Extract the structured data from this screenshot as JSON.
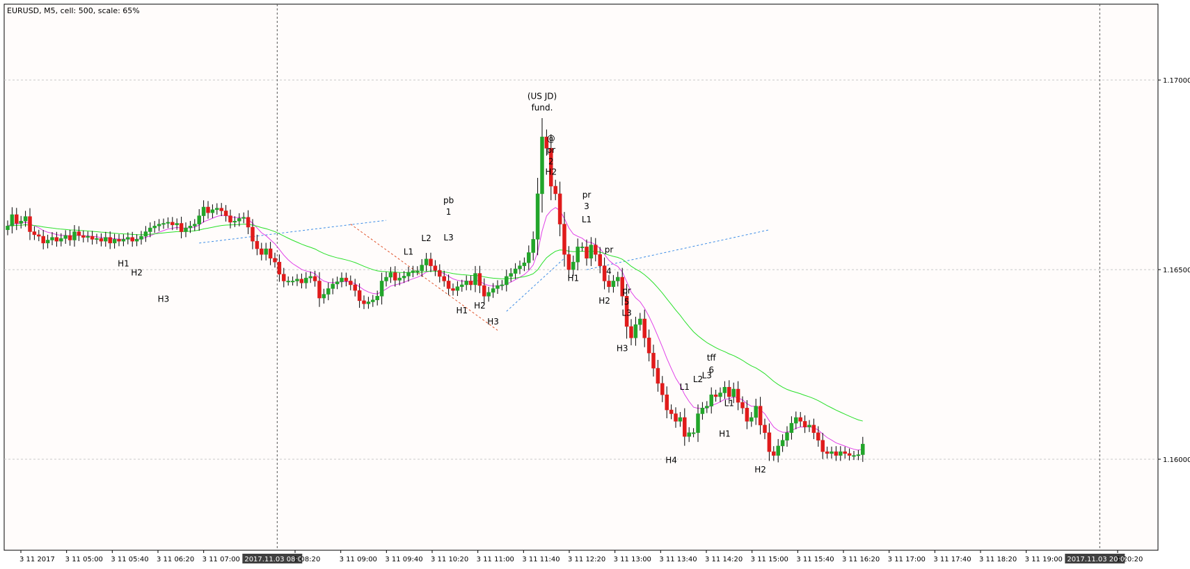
{
  "header": {
    "title": "EURUSD, M5, cell: 500, scale: 65%"
  },
  "colors": {
    "background": "#fffcfb",
    "bull": "#22a52a",
    "bear": "#e01b1b",
    "ma_fast": "#e040e8",
    "ma_slow": "#28e028",
    "trend_blue": "#3c8ce6",
    "trend_red": "#e0522a",
    "grid": "#c8c8c8"
  },
  "chart_data": {
    "type": "candlestick",
    "symbol": "EURUSD",
    "timeframe": "M5",
    "ylim": [
      1.1576,
      1.172
    ],
    "yticks": [
      "1.17000",
      "1.16500",
      "1.16000"
    ],
    "ytick_values": [
      1.17,
      1.165,
      1.16
    ],
    "xticks": [
      "3 11 2017",
      "3 11 05:00",
      "3 11 05:40",
      "3 11 06:20",
      "3 11 07:00",
      "2017.11.03 08:00",
      "1 08:20",
      "3 11 09:00",
      "3 11 09:40",
      "3 11 10:20",
      "3 11 11:00",
      "3 11 11:40",
      "3 11 12:20",
      "3 11 13:00",
      "3 11 13:40",
      "3 11 14:20",
      "3 11 15:00",
      "3 11 15:40",
      "3 11 16:20",
      "3 11 17:00",
      "3 11 17:40",
      "3 11 18:20",
      "3 11 19:00",
      "2017.11.03 20:00",
      "1 20:20"
    ],
    "highlighted_xticks": [
      "2017.11.03 08:00",
      "2017.11.03 20:00"
    ],
    "grid": true,
    "closes": [
      1.16615,
      1.16645,
      1.16622,
      1.16628,
      1.1664,
      1.166,
      1.16592,
      1.16588,
      1.1657,
      1.16578,
      1.16585,
      1.16575,
      1.16582,
      1.1659,
      1.16578,
      1.166,
      1.1659,
      1.16585,
      1.16588,
      1.1658,
      1.16582,
      1.16575,
      1.16585,
      1.1657,
      1.1658,
      1.16575,
      1.1658,
      1.16585,
      1.16575,
      1.1658,
      1.16588,
      1.166,
      1.1661,
      1.16615,
      1.1662,
      1.16622,
      1.16625,
      1.16618,
      1.16622,
      1.166,
      1.1661,
      1.16615,
      1.1662,
      1.16642,
      1.16665,
      1.1665,
      1.16658,
      1.16662,
      1.16655,
      1.16642,
      1.16625,
      1.16628,
      1.16635,
      1.16638,
      1.16612,
      1.16575,
      1.16555,
      1.1654,
      1.16555,
      1.1653,
      1.1652,
      1.16488,
      1.1647,
      1.1647,
      1.1647,
      1.16475,
      1.16465,
      1.16478,
      1.16482,
      1.1647,
      1.16425,
      1.16435,
      1.1645,
      1.16462,
      1.16468,
      1.16478,
      1.1647,
      1.1646,
      1.16445,
      1.16418,
      1.1641,
      1.16415,
      1.1642,
      1.1643,
      1.1647,
      1.1648,
      1.16492,
      1.16472,
      1.16478,
      1.16483,
      1.16493,
      1.16497,
      1.16497,
      1.16512,
      1.16528,
      1.1651,
      1.16498,
      1.16482,
      1.1647,
      1.1645,
      1.16445,
      1.16455,
      1.1646,
      1.1647,
      1.1646,
      1.1649,
      1.16458,
      1.1643,
      1.1644,
      1.1645,
      1.16458,
      1.1646,
      1.16482,
      1.1649,
      1.16502,
      1.1651,
      1.16518,
      1.16545,
      1.1658,
      1.167,
      1.1685,
      1.1682,
      1.1672,
      1.167,
      1.1662,
      1.1654,
      1.165,
      1.1652,
      1.1656,
      1.1656,
      1.1653,
      1.16565,
      1.1654,
      1.1651,
      1.1647,
      1.16455,
      1.1647,
      1.1648,
      1.1643,
      1.1635,
      1.1632,
      1.16355,
      1.1637,
      1.1632,
      1.1628,
      1.1624,
      1.162,
      1.1617,
      1.1613,
      1.1612,
      1.161,
      1.1611,
      1.1606,
      1.1607,
      1.1607,
      1.1612,
      1.16135,
      1.1614,
      1.1617,
      1.16165,
      1.16175,
      1.1619,
      1.16165,
      1.16185,
      1.1615,
      1.16135,
      1.161,
      1.1611,
      1.1614,
      1.1609,
      1.1607,
      1.1602,
      1.1601,
      1.16035,
      1.1605,
      1.1607,
      1.16095,
      1.1611,
      1.161,
      1.16085,
      1.1609,
      1.1607,
      1.1605,
      1.1602,
      1.16015,
      1.1602,
      1.1601,
      1.1602,
      1.16015,
      1.1601,
      1.1601,
      1.16012,
      1.1604
    ],
    "ma_fast_label": "",
    "ma_slow_label": "",
    "annotations": [
      {
        "text": "H1",
        "x": 26,
        "price": 1.16508
      },
      {
        "text": "H2",
        "x": 29,
        "price": 1.16485
      },
      {
        "text": "H3",
        "x": 35,
        "price": 1.16415
      },
      {
        "text": "L1",
        "x": 90,
        "price": 1.1654
      },
      {
        "text": "L2",
        "x": 94,
        "price": 1.16575
      },
      {
        "text": "pb",
        "x": 99,
        "price": 1.16675
      },
      {
        "text": "1",
        "x": 99,
        "price": 1.16645
      },
      {
        "text": "L3",
        "x": 99,
        "price": 1.16577
      },
      {
        "text": "H1",
        "x": 102,
        "price": 1.16385
      },
      {
        "text": "H2",
        "x": 106,
        "price": 1.16398
      },
      {
        "text": "H3",
        "x": 109,
        "price": 1.16355
      },
      {
        "text": "(US JD)",
        "x": 120,
        "price": 1.1695
      },
      {
        "text": "fund.",
        "x": 120,
        "price": 1.1692
      },
      {
        "text": "@",
        "x": 122,
        "price": 1.16838
      },
      {
        "text": "pr",
        "x": 122,
        "price": 1.16808
      },
      {
        "text": "2",
        "x": 122,
        "price": 1.16778
      },
      {
        "text": "H2",
        "x": 122,
        "price": 1.1675
      },
      {
        "text": "H1",
        "x": 127,
        "price": 1.1647
      },
      {
        "text": "pr",
        "x": 130,
        "price": 1.1669
      },
      {
        "text": "3",
        "x": 130,
        "price": 1.1666
      },
      {
        "text": "L1",
        "x": 130,
        "price": 1.16625
      },
      {
        "text": "pr",
        "x": 135,
        "price": 1.16545
      },
      {
        "text": "4",
        "x": 135,
        "price": 1.16488
      },
      {
        "text": "H2",
        "x": 134,
        "price": 1.1641
      },
      {
        "text": "pr",
        "x": 139,
        "price": 1.16437
      },
      {
        "text": "5",
        "x": 139,
        "price": 1.16408
      },
      {
        "text": "L3",
        "x": 139,
        "price": 1.16378
      },
      {
        "text": "H3",
        "x": 138,
        "price": 1.16285
      },
      {
        "text": "tff",
        "x": 158,
        "price": 1.1626
      },
      {
        "text": "6",
        "x": 158,
        "price": 1.16228
      },
      {
        "text": "L1",
        "x": 152,
        "price": 1.16183
      },
      {
        "text": "L2",
        "x": 155,
        "price": 1.16203
      },
      {
        "text": "L3",
        "x": 157,
        "price": 1.16213
      },
      {
        "text": "H4",
        "x": 149,
        "price": 1.1599
      },
      {
        "text": "L1",
        "x": 162,
        "price": 1.1614
      },
      {
        "text": "H1",
        "x": 161,
        "price": 1.1606
      },
      {
        "text": "H2",
        "x": 169,
        "price": 1.15965
      }
    ]
  }
}
